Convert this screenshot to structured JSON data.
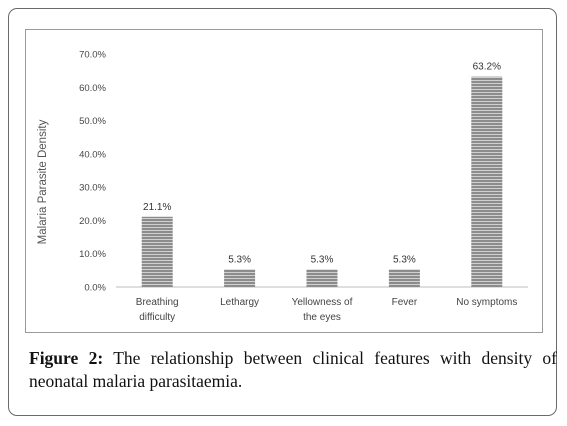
{
  "chart_data": {
    "type": "bar",
    "categories": [
      [
        "Breathing",
        "difficulty"
      ],
      [
        "Lethargy"
      ],
      [
        "Yellowness of",
        "the eyes"
      ],
      [
        "Fever"
      ],
      [
        "No symptoms"
      ]
    ],
    "values": [
      21.1,
      5.3,
      5.3,
      5.3,
      63.2
    ],
    "data_labels": [
      "21.1%",
      "5.3%",
      "5.3%",
      "5.3%",
      "63.2%"
    ],
    "ylabel": "Malaria Parasite Density",
    "xlabel": "",
    "ylim": [
      0,
      70
    ],
    "yticks": [
      0,
      10,
      20,
      30,
      40,
      50,
      60,
      70
    ],
    "ytick_labels": [
      "0.0%",
      "10.0%",
      "20.0%",
      "30.0%",
      "40.0%",
      "50.0%",
      "60.0%",
      "70.0%"
    ],
    "grid": false,
    "bar_color": "#8c8c8c",
    "bar_stripe_color": "#ffffff",
    "axis_color": "#bcbcbc"
  },
  "caption": {
    "label": "Figure 2:",
    "text": " The relationship between clinical features with density of neonatal malaria parasitaemia."
  }
}
